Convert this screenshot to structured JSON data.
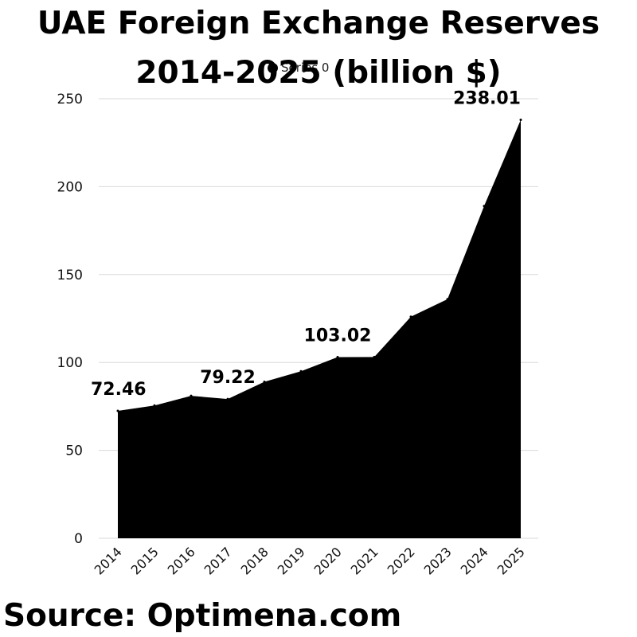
{
  "chart_data": {
    "type": "area",
    "title": [
      "UAE Foreign Exchange Reserves",
      "2014-2025 (billion $)"
    ],
    "legend": {
      "label": "Series 0",
      "placement": "top",
      "color": "#000000"
    },
    "x": [
      "2014",
      "2015",
      "2016",
      "2017",
      "2018",
      "2019",
      "2020",
      "2021",
      "2022",
      "2023",
      "2024",
      "2025"
    ],
    "series": [
      {
        "name": "Series 0",
        "values": [
          72.46,
          75.5,
          81.0,
          79.22,
          89.0,
          95.0,
          103.02,
          103.1,
          126.0,
          136.0,
          189.0,
          238.01
        ],
        "color": "#000000"
      }
    ],
    "data_labels": [
      {
        "x": "2014",
        "text": "72.46"
      },
      {
        "x": "2017",
        "text": "79.22"
      },
      {
        "x": "2020",
        "text": "103.02"
      },
      {
        "x": "2025",
        "text": "238.01"
      }
    ],
    "ylim": [
      0,
      250
    ],
    "yticks": [
      0,
      50,
      100,
      150,
      200,
      250
    ],
    "grid": true,
    "xlabel": "",
    "ylabel": ""
  },
  "source": "Source: Optimena.com"
}
